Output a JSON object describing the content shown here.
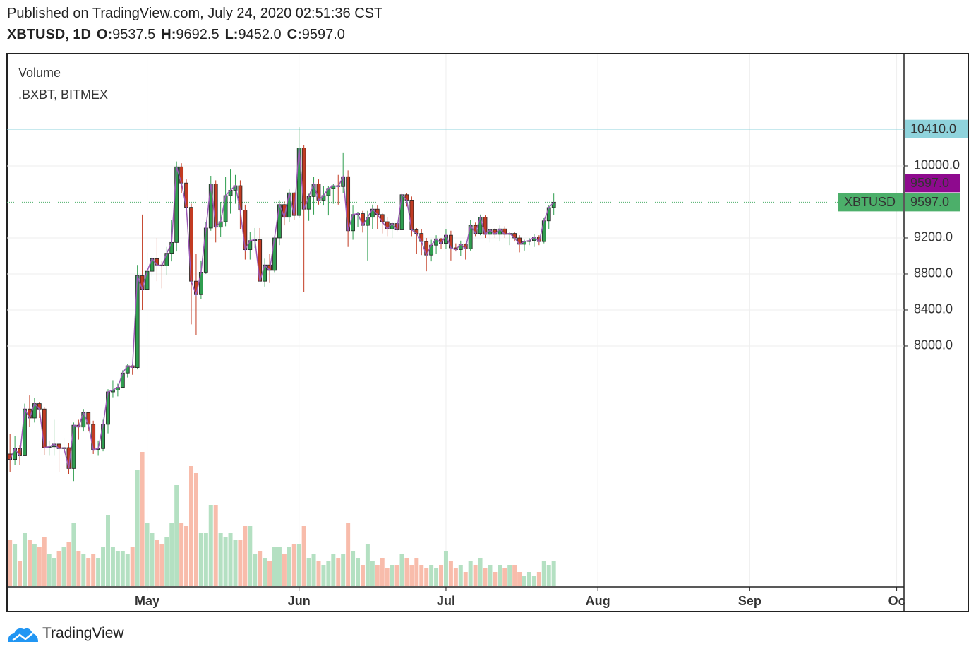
{
  "header": {
    "published": "Published on TradingView.com, July 24, 2020 02:51:36 CST",
    "symbol": "XBTUSD, 1D",
    "fields": [
      {
        "key": "O:",
        "value": "9537.5"
      },
      {
        "key": "H:",
        "value": "9692.5"
      },
      {
        "key": "L:",
        "value": "9452.0"
      },
      {
        "key": "C:",
        "value": "9597.0"
      }
    ]
  },
  "footer": {
    "brand": "TradingView"
  },
  "chart_data": {
    "type": "candlestick",
    "legend": [
      "Volume",
      ".BXBT, BITMEX"
    ],
    "up_color": "#2f9e4f",
    "down_color": "#c23b22",
    "line_color": "#9b59b6",
    "volume_up_color": "#b4e0c2",
    "volume_down_color": "#f8bcab",
    "xlim": [
      -0.6,
      182.5
    ],
    "xticks": [
      {
        "value": 28,
        "label": "May"
      },
      {
        "value": 59,
        "label": "Jun"
      },
      {
        "value": 89,
        "label": "Jul"
      },
      {
        "value": 120,
        "label": "Aug"
      },
      {
        "value": 151,
        "label": "Sep"
      },
      {
        "value": 181,
        "label": "Oc"
      }
    ],
    "ylim": [
      5333,
      11247
    ],
    "yticks": [
      {
        "value": 10000,
        "label": "10000.0"
      },
      {
        "value": 9200,
        "label": "9200.0"
      },
      {
        "value": 8800,
        "label": "8800.0"
      },
      {
        "value": 8400,
        "label": "8400.0"
      },
      {
        "value": 8000,
        "label": "8000.0"
      }
    ],
    "volume_lim": [
      0,
      400
    ],
    "price_line": {
      "value": 10410,
      "label": "10410.0",
      "color": "#8fd3dc"
    },
    "last_price": {
      "value": 9597,
      "label": "9597.0",
      "symbol": "XBTUSD",
      "color": "#8e0a8e",
      "symbol_color": "#4caf6a"
    },
    "categories": [
      null,
      null,
      null,
      null,
      null,
      null,
      null,
      null,
      null,
      null,
      null,
      null,
      null,
      null,
      null,
      null,
      null,
      null,
      null,
      null,
      null,
      null,
      null,
      null,
      null,
      null,
      null,
      null,
      null,
      null,
      null,
      null,
      null,
      null,
      null,
      null,
      null,
      null,
      null,
      null,
      null,
      null,
      null,
      null,
      null,
      null,
      null,
      null,
      null,
      null,
      null,
      null,
      null,
      null,
      null,
      null,
      null,
      null,
      null,
      null,
      null,
      null,
      null,
      null,
      null,
      null,
      null,
      null,
      null,
      null,
      null,
      null,
      null,
      null,
      null,
      null,
      null,
      null,
      null,
      null,
      null,
      null,
      null,
      null,
      null,
      null,
      null,
      null,
      null,
      null,
      null,
      null,
      null,
      null,
      null,
      null,
      null,
      null,
      null,
      null,
      null,
      null,
      null,
      null,
      null,
      null,
      null,
      null,
      null,
      null,
      null,
      null
    ],
    "ohlc": [
      [
        6800,
        7020,
        6600,
        6740
      ],
      [
        6740,
        7000,
        6680,
        6860
      ],
      [
        6860,
        6900,
        6680,
        6780
      ],
      [
        6780,
        7360,
        6780,
        7300
      ],
      [
        7300,
        7450,
        7100,
        7200
      ],
      [
        7200,
        7420,
        7150,
        7360
      ],
      [
        7360,
        7380,
        7200,
        7300
      ],
      [
        7300,
        7320,
        6790,
        6870
      ],
      [
        6870,
        6950,
        6780,
        6880
      ],
      [
        6880,
        7180,
        6780,
        6910
      ],
      [
        6910,
        6920,
        6600,
        6860
      ],
      [
        6860,
        6980,
        6800,
        6870
      ],
      [
        6870,
        6920,
        6580,
        6640
      ],
      [
        6640,
        7150,
        6500,
        7120
      ],
      [
        7120,
        7180,
        6960,
        7100
      ],
      [
        7100,
        7300,
        7050,
        7260
      ],
      [
        7260,
        7270,
        7050,
        7130
      ],
      [
        7130,
        7170,
        6800,
        6850
      ],
      [
        6850,
        6950,
        6780,
        6860
      ],
      [
        6860,
        7180,
        6830,
        7130
      ],
      [
        7130,
        7520,
        7030,
        7490
      ],
      [
        7490,
        7620,
        7430,
        7510
      ],
      [
        7510,
        7580,
        7440,
        7540
      ],
      [
        7540,
        7730,
        7530,
        7700
      ],
      [
        7700,
        7800,
        7650,
        7780
      ],
      [
        7780,
        7800,
        7680,
        7760
      ],
      [
        7760,
        8900,
        7740,
        8780
      ],
      [
        8780,
        9460,
        8400,
        8630
      ],
      [
        8630,
        9040,
        8620,
        8830
      ],
      [
        8830,
        9000,
        8770,
        8970
      ],
      [
        8970,
        9200,
        8720,
        8900
      ],
      [
        8900,
        8950,
        8640,
        8890
      ],
      [
        8890,
        9100,
        8790,
        9030
      ],
      [
        9030,
        9400,
        8940,
        9150
      ],
      [
        9150,
        10050,
        9050,
        9990
      ],
      [
        9990,
        10030,
        9700,
        9810
      ],
      [
        9810,
        9850,
        9530,
        9540
      ],
      [
        9540,
        9580,
        8240,
        8720
      ],
      [
        8720,
        9020,
        8120,
        8570
      ],
      [
        8570,
        8950,
        8520,
        8820
      ],
      [
        8820,
        9380,
        8800,
        9310
      ],
      [
        9310,
        9890,
        9280,
        9800
      ],
      [
        9800,
        9840,
        9150,
        9320
      ],
      [
        9320,
        9600,
        9210,
        9380
      ],
      [
        9380,
        9880,
        9330,
        9670
      ],
      [
        9670,
        9960,
        9470,
        9730
      ],
      [
        9730,
        9900,
        9580,
        9780
      ],
      [
        9780,
        9840,
        9300,
        9510
      ],
      [
        9510,
        9570,
        8960,
        9070
      ],
      [
        9070,
        9270,
        8960,
        9170
      ],
      [
        9170,
        9310,
        9090,
        9180
      ],
      [
        9180,
        9310,
        8720,
        8720
      ],
      [
        8720,
        8970,
        8660,
        8900
      ],
      [
        8900,
        9020,
        8700,
        8840
      ],
      [
        8840,
        9220,
        8820,
        9200
      ],
      [
        9200,
        9620,
        9120,
        9570
      ],
      [
        9570,
        9610,
        9340,
        9430
      ],
      [
        9430,
        9740,
        9380,
        9700
      ],
      [
        9700,
        9710,
        9400,
        9450
      ],
      [
        9450,
        10430,
        9420,
        10200
      ],
      [
        10200,
        10230,
        8600,
        9520
      ],
      [
        9520,
        9690,
        9390,
        9660
      ],
      [
        9660,
        9880,
        9460,
        9800
      ],
      [
        9800,
        9850,
        9570,
        9620
      ],
      [
        9620,
        9780,
        9560,
        9670
      ],
      [
        9670,
        9780,
        9450,
        9750
      ],
      [
        9750,
        9800,
        9580,
        9780
      ],
      [
        9780,
        9900,
        9570,
        9770
      ],
      [
        9770,
        10150,
        9700,
        9880
      ],
      [
        9880,
        9950,
        9100,
        9280
      ],
      [
        9280,
        9560,
        9180,
        9460
      ],
      [
        9460,
        9490,
        9320,
        9470
      ],
      [
        9470,
        9500,
        9260,
        9340
      ],
      [
        9340,
        9500,
        8950,
        9430
      ],
      [
        9430,
        9570,
        9300,
        9520
      ],
      [
        9520,
        9560,
        9300,
        9460
      ],
      [
        9460,
        9480,
        9250,
        9380
      ],
      [
        9380,
        9430,
        9220,
        9300
      ],
      [
        9300,
        9380,
        9200,
        9360
      ],
      [
        9360,
        9380,
        9270,
        9290
      ],
      [
        9290,
        9780,
        9280,
        9680
      ],
      [
        9680,
        9700,
        9550,
        9620
      ],
      [
        9620,
        9660,
        9220,
        9290
      ],
      [
        9290,
        9310,
        9020,
        9250
      ],
      [
        9250,
        9300,
        9010,
        9160
      ],
      [
        9160,
        9200,
        8830,
        9010
      ],
      [
        9010,
        9180,
        8940,
        9120
      ],
      [
        9120,
        9230,
        9020,
        9190
      ],
      [
        9190,
        9200,
        9080,
        9140
      ],
      [
        9140,
        9300,
        9080,
        9230
      ],
      [
        9230,
        9280,
        8950,
        9090
      ],
      [
        9090,
        9140,
        9050,
        9070
      ],
      [
        9070,
        9170,
        9000,
        9130
      ],
      [
        9130,
        9140,
        8960,
        9080
      ],
      [
        9080,
        9400,
        9060,
        9340
      ],
      [
        9340,
        9370,
        9220,
        9250
      ],
      [
        9250,
        9460,
        9230,
        9430
      ],
      [
        9430,
        9450,
        9200,
        9240
      ],
      [
        9240,
        9300,
        9150,
        9290
      ],
      [
        9290,
        9310,
        9200,
        9240
      ],
      [
        9240,
        9340,
        9160,
        9300
      ],
      [
        9300,
        9330,
        9200,
        9240
      ],
      [
        9240,
        9270,
        9120,
        9250
      ],
      [
        9250,
        9270,
        9160,
        9200
      ],
      [
        9200,
        9230,
        9040,
        9130
      ],
      [
        9130,
        9180,
        9060,
        9160
      ],
      [
        9160,
        9200,
        9120,
        9170
      ],
      [
        9170,
        9240,
        9100,
        9210
      ],
      [
        9210,
        9230,
        9120,
        9160
      ],
      [
        9160,
        9420,
        9140,
        9390
      ],
      [
        9390,
        9560,
        9300,
        9537.5
      ],
      [
        9537.5,
        9692.5,
        9452,
        9597
      ]
    ],
    "volume": [
      65,
      60,
      35,
      75,
      65,
      60,
      55,
      70,
      45,
      40,
      50,
      55,
      62,
      90,
      50,
      45,
      40,
      45,
      40,
      55,
      100,
      55,
      50,
      50,
      45,
      55,
      165,
      190,
      90,
      75,
      65,
      60,
      70,
      90,
      143,
      90,
      85,
      170,
      160,
      75,
      75,
      115,
      115,
      75,
      70,
      75,
      65,
      65,
      85,
      85,
      45,
      50,
      40,
      35,
      55,
      55,
      45,
      55,
      60,
      60,
      85,
      40,
      45,
      35,
      30,
      35,
      45,
      40,
      45,
      90,
      50,
      40,
      30,
      60,
      35,
      30,
      40,
      25,
      30,
      30,
      45,
      40,
      30,
      40,
      30,
      25,
      30,
      25,
      30,
      50,
      35,
      25,
      30,
      20,
      35,
      30,
      40,
      25,
      30,
      20,
      30,
      25,
      30,
      30,
      20,
      15,
      20,
      15,
      20,
      35,
      30,
      35
    ]
  }
}
